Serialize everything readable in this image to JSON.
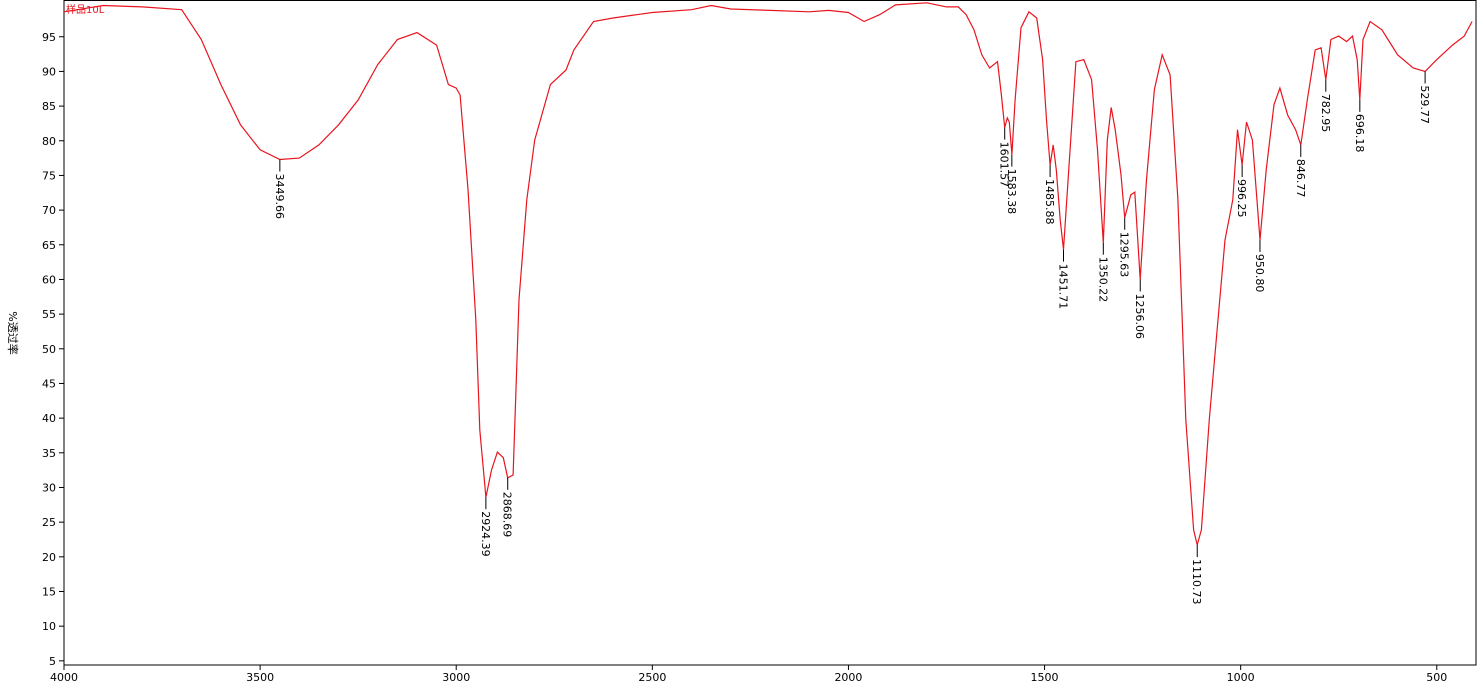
{
  "chart_data": {
    "type": "line",
    "y_label": "%透过率",
    "series_label": "样品10L",
    "x": [
      4000,
      3900,
      3800,
      3700,
      3650,
      3600,
      3550,
      3500,
      3449.66,
      3400,
      3350,
      3300,
      3250,
      3200,
      3150,
      3100,
      3050,
      3020,
      3000,
      2990,
      2970,
      2950,
      2940,
      2924.39,
      2910,
      2895,
      2880,
      2868.69,
      2855,
      2840,
      2820,
      2800,
      2760,
      2720,
      2700,
      2650,
      2600,
      2500,
      2400,
      2350,
      2300,
      2200,
      2100,
      2050,
      2000,
      1960,
      1920,
      1880,
      1800,
      1750,
      1720,
      1700,
      1680,
      1660,
      1640,
      1620,
      1610,
      1601.57,
      1595,
      1590,
      1583.38,
      1575,
      1560,
      1540,
      1520,
      1505,
      1495,
      1485.88,
      1478,
      1470,
      1460,
      1451.71,
      1440,
      1420,
      1400,
      1380,
      1365,
      1350.22,
      1340,
      1330,
      1320,
      1305,
      1295.63,
      1280,
      1270,
      1256.06,
      1240,
      1220,
      1200,
      1180,
      1160,
      1140,
      1120,
      1110.73,
      1100,
      1080,
      1060,
      1040,
      1020,
      1008,
      996.25,
      985,
      970,
      950.8,
      935,
      915,
      900,
      880,
      860,
      846.77,
      830,
      810,
      795,
      782.95,
      770,
      750,
      730,
      715,
      703,
      696.18,
      688,
      670,
      640,
      600,
      560,
      529.77,
      500,
      460,
      430,
      410
    ],
    "series": [
      {
        "name": "样品10L",
        "color": "#e8141e",
        "values": [
          98.6,
          99.5,
          99.3,
          98.9,
          94.6,
          88.1,
          82.3,
          78.7,
          77.3,
          77.5,
          79.4,
          82.3,
          85.9,
          91.0,
          94.6,
          95.6,
          93.8,
          88.1,
          87.6,
          86.6,
          73.0,
          54.2,
          38.3,
          28.6,
          32.5,
          35.1,
          34.3,
          31.4,
          31.8,
          57.1,
          71.5,
          80.1,
          88.1,
          90.2,
          93.1,
          97.2,
          97.7,
          98.5,
          98.9,
          99.5,
          99.0,
          98.8,
          98.6,
          98.8,
          98.5,
          97.2,
          98.2,
          99.6,
          99.9,
          99.3,
          99.3,
          98.2,
          96.0,
          92.4,
          90.5,
          91.4,
          86.6,
          81.9,
          83.3,
          82.7,
          78.0,
          85.9,
          96.3,
          98.6,
          97.7,
          91.7,
          83.0,
          76.5,
          79.4,
          75.8,
          68.6,
          64.3,
          74.4,
          91.4,
          91.7,
          88.8,
          78.7,
          65.3,
          80.1,
          84.8,
          81.6,
          75.1,
          68.9,
          72.2,
          72.6,
          60.0,
          74.4,
          87.4,
          92.4,
          89.5,
          71.5,
          39.8,
          23.9,
          21.7,
          23.9,
          39.8,
          52.7,
          65.7,
          71.5,
          81.6,
          76.5,
          82.7,
          80.1,
          65.7,
          75.8,
          85.2,
          87.6,
          83.7,
          81.6,
          79.4,
          85.9,
          93.1,
          93.4,
          88.8,
          94.6,
          95.1,
          94.3,
          95.1,
          91.7,
          85.9,
          94.6,
          97.2,
          96.0,
          92.4,
          90.5,
          90.0,
          91.7,
          93.8,
          95.1,
          97.2
        ]
      }
    ],
    "peaks": [
      3449.66,
      2924.39,
      2868.69,
      1601.57,
      1583.38,
      1485.88,
      1451.71,
      1350.22,
      1295.63,
      1256.06,
      1110.73,
      {
        "value": 996.25,
        "label": "996.25"
      },
      {
        "value": 950.8,
        "label": "950.80"
      },
      {
        "value": 846.77,
        "label": "846.77"
      },
      {
        "value": 782.95,
        "label": "782.95"
      },
      {
        "value": 696.18,
        "label": "696.18"
      },
      {
        "value": 529.77,
        "label": "529.77"
      }
    ],
    "xlim": [
      4000,
      400
    ],
    "ylim": [
      4.4,
      100.3
    ],
    "xticks": [
      4000,
      3500,
      3000,
      2500,
      2000,
      1500,
      1000,
      500
    ],
    "yticks": [
      5,
      10,
      15,
      20,
      25,
      30,
      35,
      40,
      45,
      50,
      55,
      60,
      65,
      70,
      75,
      80,
      85,
      90,
      95
    ]
  }
}
